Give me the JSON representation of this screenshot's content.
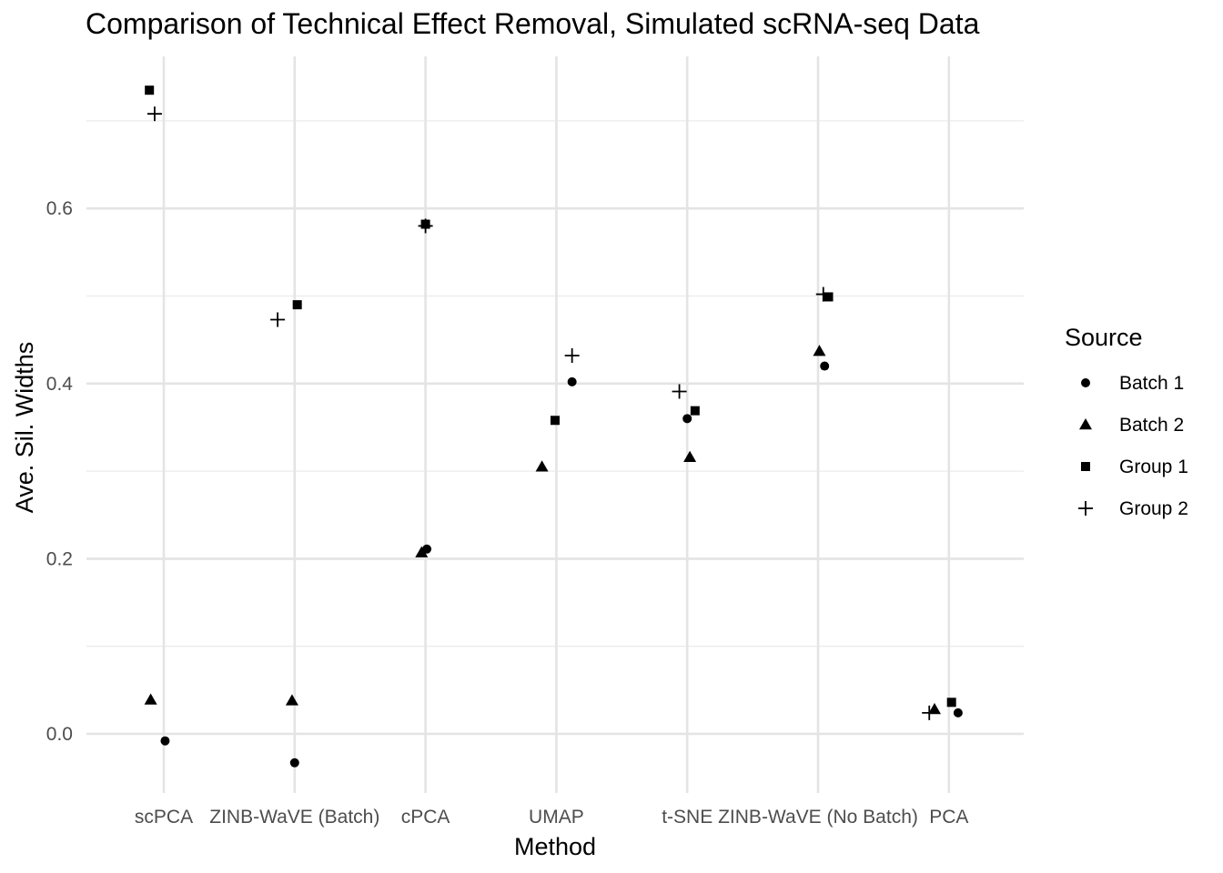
{
  "chart_data": {
    "type": "scatter",
    "title": "Comparison of Technical Effect Removal, Simulated scRNA-seq Data",
    "xlabel": "Method",
    "ylabel": "Ave. Sil. Widths",
    "categories": [
      "scPCA",
      "ZINB-WaVE (Batch)",
      "cPCA",
      "UMAP",
      "t-SNE",
      "ZINB-WaVE (No Batch)",
      "PCA"
    ],
    "ylim": [
      -0.065,
      0.77
    ],
    "yticks": [
      0.0,
      0.2,
      0.4,
      0.6
    ],
    "ytick_labels": [
      "0.0",
      "0.2",
      "0.4",
      "0.6"
    ],
    "grid": true,
    "legend": {
      "title": "Source",
      "position": "right"
    },
    "series": [
      {
        "name": "Batch 1",
        "shape": "circle",
        "values": [
          -0.008,
          -0.033,
          0.211,
          0.402,
          0.36,
          0.42,
          0.024
        ],
        "jitter": [
          0.01,
          0.0,
          0.01,
          0.12,
          0.0,
          0.05,
          0.07
        ]
      },
      {
        "name": "Batch 2",
        "shape": "triangle",
        "values": [
          0.039,
          0.038,
          0.207,
          0.305,
          0.316,
          0.437,
          0.028
        ],
        "jitter": [
          -0.1,
          -0.02,
          -0.03,
          -0.11,
          0.02,
          0.01,
          -0.11
        ]
      },
      {
        "name": "Group 1",
        "shape": "square",
        "values": [
          0.735,
          0.49,
          0.582,
          0.358,
          0.369,
          0.499,
          0.036
        ],
        "jitter": [
          -0.11,
          0.02,
          0.0,
          -0.01,
          0.06,
          0.08,
          0.02
        ]
      },
      {
        "name": "Group 2",
        "shape": "plus",
        "values": [
          0.708,
          0.473,
          0.58,
          0.432,
          0.391,
          0.502,
          0.024
        ],
        "jitter": [
          -0.07,
          -0.13,
          0.0,
          0.12,
          -0.06,
          0.04,
          -0.15
        ]
      }
    ]
  }
}
